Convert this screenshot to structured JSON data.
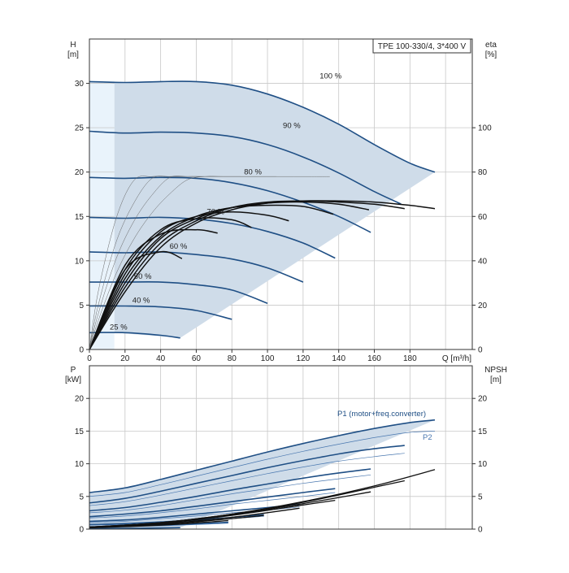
{
  "chart_data": [
    {
      "type": "line",
      "panel": "head",
      "title": "TPE 100-330/4, 3*400 V",
      "xlabel": "Q [m³/h]",
      "ylabel": [
        "H",
        "[m]"
      ],
      "y2label": [
        "eta",
        "[%]"
      ],
      "xlim": [
        0,
        215
      ],
      "ylim": [
        0,
        35
      ],
      "y2lim": [
        0,
        140
      ],
      "x_ticks": [
        0,
        20,
        40,
        60,
        80,
        100,
        120,
        140,
        160,
        180
      ],
      "y_ticks": [
        0,
        5,
        10,
        15,
        20,
        25,
        30
      ],
      "y2_ticks": [
        0,
        20,
        40,
        60,
        80,
        100
      ],
      "grid": true,
      "speed_curves": [
        {
          "label": "100 %",
          "x": [
            0,
            20,
            40,
            60,
            80,
            100,
            120,
            140,
            160,
            180,
            194
          ],
          "y": [
            30.2,
            30.1,
            30.2,
            30.2,
            29.8,
            28.8,
            27.3,
            25.4,
            23.1,
            21.0,
            20.0
          ]
        },
        {
          "label": "90 %",
          "x": [
            0,
            20,
            40,
            60,
            80,
            100,
            120,
            140,
            160,
            175
          ],
          "y": [
            24.6,
            24.4,
            24.5,
            24.4,
            24.0,
            23.1,
            21.7,
            19.9,
            17.8,
            16.4
          ]
        },
        {
          "label": "80 %",
          "x": [
            0,
            20,
            40,
            60,
            80,
            100,
            120,
            140,
            158
          ],
          "y": [
            19.4,
            19.3,
            19.4,
            19.3,
            18.8,
            17.9,
            16.6,
            15.0,
            13.2
          ]
        },
        {
          "label": "70 %",
          "x": [
            0,
            20,
            40,
            60,
            80,
            100,
            120,
            138
          ],
          "y": [
            14.9,
            14.8,
            14.9,
            14.7,
            14.2,
            13.3,
            12.0,
            10.3
          ]
        },
        {
          "label": "60 %",
          "x": [
            0,
            20,
            40,
            60,
            80,
            100,
            120
          ],
          "y": [
            11.0,
            10.9,
            11.0,
            10.7,
            10.2,
            9.2,
            7.6
          ]
        },
        {
          "label": "50 %",
          "x": [
            0,
            20,
            40,
            60,
            80,
            100
          ],
          "y": [
            7.6,
            7.6,
            7.6,
            7.3,
            6.7,
            5.2
          ]
        },
        {
          "label": "40 %",
          "x": [
            0,
            20,
            40,
            60,
            80
          ],
          "y": [
            4.9,
            4.9,
            4.8,
            4.4,
            3.4
          ]
        },
        {
          "label": "25 %",
          "x": [
            0,
            20,
            40,
            51
          ],
          "y": [
            1.9,
            1.9,
            1.6,
            1.3
          ]
        }
      ],
      "efficiency_curves": [
        {
          "x": [
            0,
            20,
            40,
            60,
            80,
            100,
            120,
            140,
            160,
            180,
            194
          ],
          "y": [
            0,
            26,
            46,
            57,
            63,
            66,
            67,
            67,
            66.5,
            65,
            63.5
          ]
        },
        {
          "x": [
            0,
            20,
            40,
            60,
            80,
            100,
            120,
            140,
            160,
            177
          ],
          "y": [
            0,
            28,
            48,
            58,
            64,
            66.5,
            67,
            66.5,
            65.5,
            63.5
          ]
        },
        {
          "x": [
            0,
            20,
            40,
            60,
            80,
            100,
            120,
            140,
            157
          ],
          "y": [
            0,
            30,
            50,
            59,
            64,
            66,
            66.5,
            65.5,
            63
          ]
        },
        {
          "x": [
            0,
            20,
            40,
            60,
            80,
            100,
            120,
            137
          ],
          "y": [
            0,
            32,
            51,
            60,
            64,
            65,
            64.5,
            61
          ]
        },
        {
          "x": [
            0,
            20,
            40,
            60,
            80,
            100,
            112
          ],
          "y": [
            0,
            34,
            53,
            60,
            62,
            60.5,
            58
          ]
        },
        {
          "x": [
            0,
            20,
            40,
            60,
            80,
            91
          ],
          "y": [
            0,
            36,
            54,
            59,
            58.5,
            55
          ]
        },
        {
          "x": [
            0,
            20,
            40,
            60,
            72
          ],
          "y": [
            0,
            38,
            52,
            54,
            52.5
          ]
        },
        {
          "x": [
            0,
            20,
            40,
            52
          ],
          "y": [
            0,
            36,
            44,
            41
          ]
        }
      ]
    },
    {
      "type": "line",
      "panel": "power",
      "ylabel": [
        "P",
        "[kW]"
      ],
      "y2label": [
        "NPSH",
        "[m]"
      ],
      "xlim": [
        0,
        215
      ],
      "ylim": [
        0,
        25
      ],
      "y2lim": [
        0,
        25
      ],
      "y_ticks": [
        0,
        5,
        10,
        15,
        20
      ],
      "y2_ticks": [
        0,
        5,
        10,
        15,
        20
      ],
      "grid": true,
      "series_labels": [
        "P1 (motor+freq.converter)",
        "P2"
      ],
      "power_curves": [
        {
          "x": [
            0,
            20,
            40,
            60,
            80,
            100,
            120,
            140,
            160,
            180,
            194
          ],
          "y": [
            5.6,
            6.3,
            7.6,
            9.0,
            10.4,
            11.8,
            13.1,
            14.3,
            15.4,
            16.3,
            16.7
          ]
        },
        {
          "x": [
            0,
            20,
            40,
            60,
            80,
            100,
            120,
            140,
            160,
            177
          ],
          "y": [
            4.0,
            4.7,
            5.8,
            7.0,
            8.2,
            9.4,
            10.5,
            11.5,
            12.3,
            12.8
          ]
        },
        {
          "x": [
            0,
            20,
            40,
            60,
            80,
            100,
            120,
            140,
            158
          ],
          "y": [
            2.8,
            3.3,
            4.1,
            5.0,
            6.0,
            6.9,
            7.8,
            8.6,
            9.2
          ]
        },
        {
          "x": [
            0,
            20,
            40,
            60,
            80,
            100,
            120,
            138
          ],
          "y": [
            1.9,
            2.3,
            2.8,
            3.5,
            4.2,
            4.9,
            5.6,
            6.2
          ]
        },
        {
          "x": [
            0,
            20,
            40,
            60,
            80,
            100,
            118
          ],
          "y": [
            1.2,
            1.4,
            1.8,
            2.3,
            2.8,
            3.3,
            3.8
          ]
        },
        {
          "x": [
            0,
            20,
            40,
            60,
            80,
            98
          ],
          "y": [
            0.7,
            0.85,
            1.1,
            1.4,
            1.8,
            2.2
          ]
        },
        {
          "x": [
            0,
            20,
            40,
            60,
            78
          ],
          "y": [
            0.35,
            0.45,
            0.6,
            0.8,
            1.05
          ]
        },
        {
          "x": [
            0,
            20,
            40,
            51
          ],
          "y": [
            0.1,
            0.12,
            0.18,
            0.22
          ]
        }
      ],
      "p2_curves": [
        {
          "x": [
            0,
            20,
            40,
            60,
            80,
            100,
            120,
            140,
            160,
            180,
            194
          ],
          "y": [
            5.0,
            5.6,
            6.8,
            8.1,
            9.4,
            10.7,
            11.9,
            13.0,
            14.0,
            14.8,
            15.0
          ]
        },
        {
          "x": [
            0,
            20,
            40,
            60,
            80,
            100,
            120,
            140,
            160,
            177
          ],
          "y": [
            3.6,
            4.2,
            5.2,
            6.3,
            7.4,
            8.5,
            9.5,
            10.4,
            11.1,
            11.6
          ]
        },
        {
          "x": [
            0,
            20,
            40,
            60,
            80,
            100,
            120,
            140,
            158
          ],
          "y": [
            2.5,
            2.9,
            3.6,
            4.5,
            5.4,
            6.2,
            7.0,
            7.7,
            8.3
          ]
        },
        {
          "x": [
            0,
            20,
            40,
            60,
            80,
            100,
            120,
            138
          ],
          "y": [
            1.7,
            2.0,
            2.5,
            3.1,
            3.8,
            4.4,
            5.0,
            5.6
          ]
        },
        {
          "x": [
            0,
            20,
            40,
            60,
            80,
            100,
            118
          ],
          "y": [
            1.0,
            1.2,
            1.6,
            2.0,
            2.5,
            2.9,
            3.4
          ]
        },
        {
          "x": [
            0,
            20,
            40,
            60,
            80,
            98
          ],
          "y": [
            0.6,
            0.7,
            0.95,
            1.2,
            1.6,
            1.95
          ]
        },
        {
          "x": [
            0,
            20,
            40,
            60,
            78
          ],
          "y": [
            0.3,
            0.4,
            0.5,
            0.7,
            0.9
          ]
        }
      ],
      "npsh_curves": [
        {
          "x": [
            0,
            40,
            80,
            120,
            160,
            194
          ],
          "y": [
            0.3,
            1.0,
            2.3,
            4.2,
            6.6,
            9.1
          ]
        },
        {
          "x": [
            0,
            40,
            80,
            120,
            160,
            177
          ],
          "y": [
            0.3,
            1.0,
            2.3,
            4.1,
            6.4,
            7.4
          ]
        },
        {
          "x": [
            0,
            40,
            80,
            120,
            158
          ],
          "y": [
            0.3,
            1.0,
            2.2,
            3.9,
            5.7
          ]
        },
        {
          "x": [
            0,
            40,
            80,
            120,
            138
          ],
          "y": [
            0.3,
            0.9,
            2.1,
            3.7,
            4.4
          ]
        },
        {
          "x": [
            0,
            40,
            80,
            118
          ],
          "y": [
            0.2,
            0.8,
            1.8,
            3.2
          ]
        },
        {
          "x": [
            0,
            40,
            80,
            98
          ],
          "y": [
            0.2,
            0.7,
            1.6,
            2.1
          ]
        },
        {
          "x": [
            0,
            40,
            78
          ],
          "y": [
            0.2,
            0.6,
            1.3
          ]
        }
      ]
    }
  ]
}
